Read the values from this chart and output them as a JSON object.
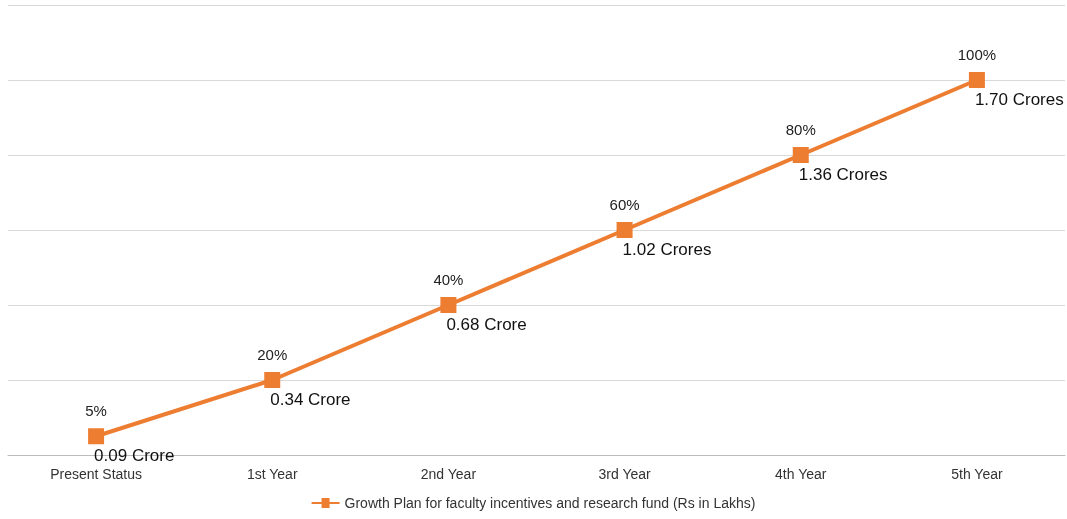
{
  "chart_data": {
    "type": "line",
    "categories": [
      "Present Status",
      "1st Year",
      "2nd Year",
      "3rd Year",
      "4th Year",
      "5th Year"
    ],
    "series": [
      {
        "name": "Growth Plan for faculty incentives and research fund (Rs in Lakhs)",
        "color": "#ed7d31",
        "values": [
          5,
          20,
          40,
          60,
          80,
          100
        ],
        "value_labels": [
          "5%",
          "20%",
          "40%",
          "60%",
          "80%",
          "100%"
        ]
      }
    ],
    "ylim": [
      0,
      120
    ],
    "yticks": [
      {
        "value": 0,
        "label": null
      },
      {
        "value": 20,
        "label": null
      },
      {
        "value": 40,
        "label": null
      },
      {
        "value": 60,
        "label": null
      },
      {
        "value": 80,
        "label": null
      },
      {
        "value": 100,
        "label": null
      },
      {
        "value": 120,
        "label": null
      }
    ],
    "annotations": [
      {
        "text": "0.09 Crore",
        "x": "Present Status",
        "y": 5
      },
      {
        "text": "0.34 Crore",
        "x": "1st Year",
        "y": 20
      },
      {
        "text": "0.68 Crore",
        "x": "2nd Year",
        "y": 40
      },
      {
        "text": "1.02 Crores",
        "x": "3rd Year",
        "y": 60
      },
      {
        "text": "1.36 Crores",
        "x": "4th Year",
        "y": 80
      },
      {
        "text": "1.70 Crores",
        "x": "5th Year",
        "y": 100
      }
    ],
    "grid": "y",
    "legend": "bottom",
    "marker": "square",
    "line_style": "solid",
    "tick_labels": "x"
  }
}
